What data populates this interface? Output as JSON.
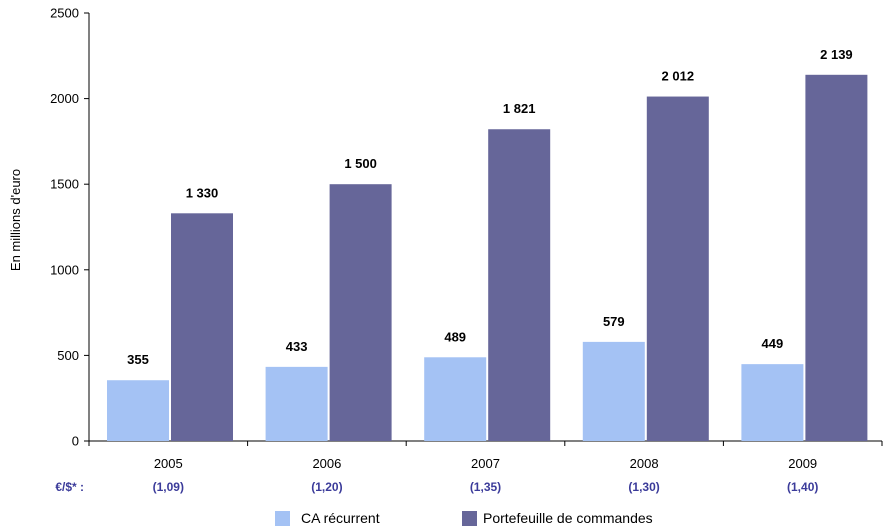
{
  "chart_data": {
    "type": "bar",
    "categories": [
      "2005",
      "2006",
      "2007",
      "2008",
      "2009"
    ],
    "series": [
      {
        "name": "CA récurrent",
        "values": [
          355,
          433,
          489,
          579,
          449
        ],
        "labels": [
          "355",
          "433",
          "489",
          "579",
          "449"
        ],
        "color": "#a4c2f4"
      },
      {
        "name": "Portefeuille de commandes",
        "values": [
          1330,
          1500,
          1821,
          2012,
          2139
        ],
        "labels": [
          "1 330",
          "1 500",
          "1 821",
          "2 012",
          "2 139"
        ],
        "color": "#666699"
      }
    ],
    "ylabel": "En millions d'euro",
    "ylim": [
      0,
      2500
    ],
    "yticks": [
      "0",
      "500",
      "1000",
      "1500",
      "2000",
      "2500"
    ],
    "ytick_values": [
      0,
      500,
      1000,
      1500,
      2000,
      2500
    ],
    "rate_header": "€/$* :",
    "rates": [
      "(1,09)",
      "(1,20)",
      "(1,35)",
      "(1,30)",
      "(1,40)"
    ],
    "legend_position": "bottom",
    "grid": false
  }
}
